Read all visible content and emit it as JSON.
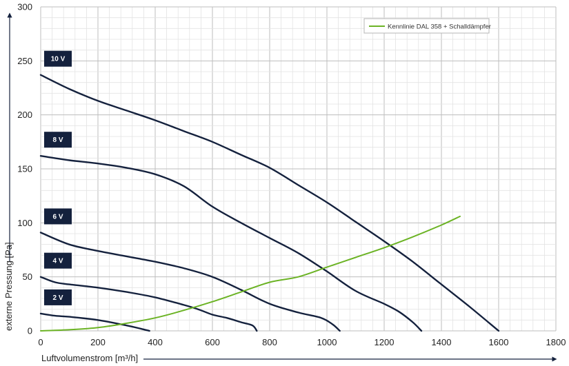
{
  "chart_data": {
    "type": "line",
    "xlabel": "Luftvolumenstrom [m³/h]",
    "ylabel": "externe Pressung [Pa]",
    "xlim": [
      0,
      1800
    ],
    "ylim": [
      0,
      300
    ],
    "x_ticks": [
      0,
      200,
      400,
      600,
      800,
      1000,
      1200,
      1400,
      1600,
      1800
    ],
    "y_ticks": [
      0,
      50,
      100,
      150,
      200,
      250,
      300
    ],
    "grid": true,
    "legend": {
      "position": "top-right",
      "label": "Kennlinie DAL 358 + Schalldämpfer"
    },
    "colors": {
      "fan_curves": "#14213d",
      "system_curve": "#6bb324",
      "badge_bg": "#14213d",
      "grid": "#cccccc"
    },
    "series": [
      {
        "badge": "10 V",
        "kind": "fan",
        "points": [
          [
            0,
            237
          ],
          [
            100,
            224
          ],
          [
            200,
            213
          ],
          [
            300,
            204
          ],
          [
            400,
            195
          ],
          [
            500,
            185
          ],
          [
            600,
            175
          ],
          [
            700,
            163
          ],
          [
            800,
            151
          ],
          [
            900,
            135
          ],
          [
            1000,
            119
          ],
          [
            1100,
            101
          ],
          [
            1200,
            83
          ],
          [
            1300,
            64
          ],
          [
            1400,
            43
          ],
          [
            1500,
            22
          ],
          [
            1600,
            0
          ]
        ]
      },
      {
        "badge": "8 V",
        "kind": "fan",
        "points": [
          [
            0,
            162
          ],
          [
            100,
            158
          ],
          [
            200,
            155
          ],
          [
            300,
            151
          ],
          [
            400,
            145
          ],
          [
            500,
            134
          ],
          [
            600,
            115
          ],
          [
            700,
            100
          ],
          [
            800,
            86
          ],
          [
            900,
            72
          ],
          [
            1000,
            55
          ],
          [
            1100,
            37
          ],
          [
            1200,
            25
          ],
          [
            1250,
            18
          ],
          [
            1300,
            8
          ],
          [
            1330,
            0
          ]
        ]
      },
      {
        "badge": "6 V",
        "kind": "fan",
        "points": [
          [
            0,
            91
          ],
          [
            100,
            80
          ],
          [
            200,
            74
          ],
          [
            300,
            69
          ],
          [
            400,
            64
          ],
          [
            500,
            58
          ],
          [
            600,
            50
          ],
          [
            700,
            38
          ],
          [
            800,
            25
          ],
          [
            900,
            17
          ],
          [
            980,
            12
          ],
          [
            1020,
            6
          ],
          [
            1045,
            0
          ]
        ]
      },
      {
        "badge": "4 V",
        "kind": "fan",
        "points": [
          [
            0,
            50
          ],
          [
            50,
            45
          ],
          [
            100,
            43
          ],
          [
            200,
            40
          ],
          [
            300,
            36
          ],
          [
            400,
            31
          ],
          [
            500,
            24
          ],
          [
            550,
            20
          ],
          [
            600,
            15
          ],
          [
            650,
            12
          ],
          [
            700,
            8
          ],
          [
            740,
            5
          ],
          [
            755,
            0
          ]
        ]
      },
      {
        "badge": "2 V",
        "kind": "fan",
        "points": [
          [
            0,
            16
          ],
          [
            50,
            14
          ],
          [
            100,
            13
          ],
          [
            200,
            10
          ],
          [
            300,
            5
          ],
          [
            350,
            2
          ],
          [
            380,
            0
          ]
        ]
      },
      {
        "name": "Kennlinie DAL 358 + Schalldämpfer",
        "kind": "system",
        "points": [
          [
            0,
            0
          ],
          [
            100,
            1
          ],
          [
            200,
            3
          ],
          [
            300,
            7
          ],
          [
            400,
            12
          ],
          [
            500,
            19
          ],
          [
            600,
            27
          ],
          [
            700,
            36
          ],
          [
            800,
            45
          ],
          [
            900,
            50
          ],
          [
            1000,
            59
          ],
          [
            1100,
            68
          ],
          [
            1200,
            77
          ],
          [
            1300,
            87
          ],
          [
            1400,
            98
          ],
          [
            1465,
            106
          ]
        ]
      }
    ]
  }
}
